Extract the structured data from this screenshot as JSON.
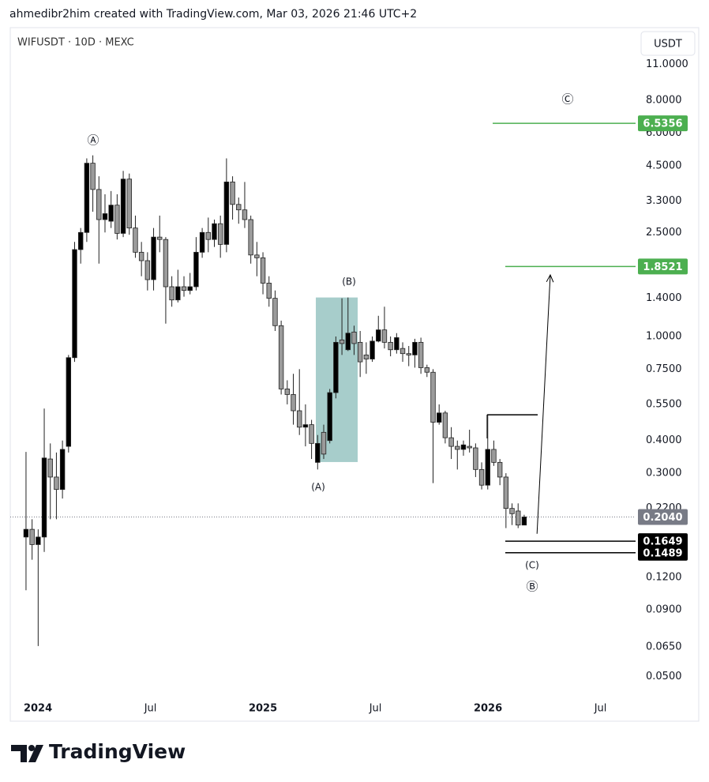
{
  "header": {
    "attribution": "ahmedibr2him created with TradingView.com, Mar 03, 2026 21:46 UTC+2"
  },
  "chart_data": {
    "type": "candlestick",
    "title": "WIFUSDT · 10D · MEXC",
    "currency": "USDT",
    "log_scale": true,
    "up_color": "#000000",
    "down_color": "#9b9b9b",
    "x": [
      2023.947,
      2023.974,
      2024.001,
      2024.028,
      2024.055,
      2024.082,
      2024.109,
      2024.136,
      2024.163,
      2024.19,
      2024.217,
      2024.244,
      2024.271,
      2024.298,
      2024.325,
      2024.352,
      2024.379,
      2024.406,
      2024.433,
      2024.46,
      2024.487,
      2024.514,
      2024.541,
      2024.568,
      2024.595,
      2024.622,
      2024.649,
      2024.676,
      2024.703,
      2024.73,
      2024.757,
      2024.784,
      2024.811,
      2024.838,
      2024.865,
      2024.892,
      2024.919,
      2024.946,
      2024.973,
      2025.0,
      2025.027,
      2025.054,
      2025.081,
      2025.108,
      2025.135,
      2025.162,
      2025.189,
      2025.216,
      2025.243,
      2025.27,
      2025.297,
      2025.324,
      2025.351,
      2025.378,
      2025.405,
      2025.432,
      2025.459,
      2025.486,
      2025.513,
      2025.54,
      2025.567,
      2025.594,
      2025.621,
      2025.648,
      2025.675,
      2025.702,
      2025.729,
      2025.756,
      2025.783,
      2025.81,
      2025.837,
      2025.864,
      2025.891,
      2025.918,
      2025.945,
      2025.972,
      2025.999,
      2026.026,
      2026.053,
      2026.08,
      2026.107,
      2026.134,
      2026.161
    ],
    "open": [
      0.171,
      0.183,
      0.16,
      0.171,
      0.34,
      0.29,
      0.26,
      0.38,
      0.83,
      2.15,
      2.5,
      4.6,
      3.65,
      2.8,
      2.76,
      3.18,
      2.48,
      4.0,
      2.6,
      2.1,
      1.95,
      1.65,
      2.4,
      2.35,
      1.55,
      1.38,
      1.55,
      1.5,
      1.55,
      2.1,
      2.5,
      2.35,
      2.7,
      2.25,
      3.9,
      3.2,
      3.05,
      2.8,
      2.05,
      2.0,
      1.6,
      1.4,
      1.1,
      0.63,
      0.6,
      0.52,
      0.45,
      0.46,
      0.33,
      0.43,
      0.4,
      0.61,
      0.97,
      0.89,
      1.04,
      0.95,
      0.85,
      0.82,
      0.96,
      1.06,
      0.95,
      0.89,
      0.9,
      0.86,
      0.85,
      0.95,
      0.76,
      0.73,
      0.47,
      0.51,
      0.41,
      0.38,
      0.37,
      0.38,
      0.375,
      0.31,
      0.27,
      0.37,
      0.33,
      0.29,
      0.22,
      0.215,
      0.19
    ],
    "high": [
      0.362,
      0.2,
      0.183,
      0.53,
      0.39,
      0.36,
      0.4,
      0.85,
      2.3,
      2.6,
      4.8,
      4.93,
      4.1,
      3.5,
      3.6,
      3.5,
      4.3,
      4.2,
      2.9,
      2.3,
      2.1,
      2.6,
      2.9,
      2.4,
      1.7,
      1.8,
      1.7,
      1.75,
      2.4,
      2.6,
      2.85,
      2.8,
      2.9,
      4.8,
      4.1,
      3.4,
      3.9,
      2.9,
      2.3,
      2.1,
      1.7,
      1.5,
      1.15,
      0.68,
      0.72,
      0.75,
      0.55,
      0.48,
      0.42,
      0.46,
      0.63,
      1.0,
      1.4,
      1.41,
      1.1,
      1.05,
      0.95,
      1.0,
      1.2,
      1.3,
      1.0,
      1.03,
      0.95,
      0.92,
      0.98,
      0.99,
      0.78,
      0.75,
      0.55,
      0.52,
      0.45,
      0.4,
      0.4,
      0.44,
      0.39,
      0.33,
      0.5,
      0.4,
      0.34,
      0.3,
      0.23,
      0.23,
      0.208
    ],
    "low": [
      0.107,
      0.14,
      0.0655,
      0.15,
      0.2,
      0.2,
      0.24,
      0.36,
      0.8,
      1.9,
      2.3,
      3.0,
      1.9,
      2.5,
      2.6,
      2.35,
      2.4,
      2.45,
      2.0,
      1.7,
      1.5,
      1.5,
      2.1,
      1.12,
      1.3,
      1.35,
      1.42,
      1.45,
      1.5,
      2.0,
      2.1,
      2.2,
      2.0,
      2.1,
      2.8,
      2.7,
      2.6,
      1.9,
      1.7,
      1.45,
      1.3,
      1.05,
      0.6,
      0.55,
      0.46,
      0.42,
      0.38,
      0.34,
      0.31,
      0.34,
      0.39,
      0.58,
      0.85,
      0.88,
      0.85,
      0.7,
      0.72,
      0.8,
      0.95,
      0.9,
      0.84,
      0.86,
      0.8,
      0.77,
      0.76,
      0.72,
      0.7,
      0.275,
      0.46,
      0.39,
      0.34,
      0.31,
      0.35,
      0.36,
      0.29,
      0.26,
      0.26,
      0.32,
      0.27,
      0.185,
      0.19,
      0.185,
      0.19
    ],
    "close": [
      0.183,
      0.16,
      0.171,
      0.343,
      0.29,
      0.26,
      0.37,
      0.83,
      2.15,
      2.5,
      4.6,
      3.65,
      2.8,
      2.95,
      3.18,
      2.48,
      4.0,
      2.6,
      2.1,
      1.95,
      1.65,
      2.4,
      2.35,
      1.55,
      1.38,
      1.55,
      1.5,
      1.55,
      2.1,
      2.5,
      2.35,
      2.7,
      2.25,
      3.9,
      3.2,
      3.05,
      2.8,
      2.05,
      2.0,
      1.6,
      1.4,
      1.1,
      0.63,
      0.6,
      0.52,
      0.45,
      0.46,
      0.39,
      0.39,
      0.355,
      0.61,
      0.95,
      0.94,
      1.03,
      0.94,
      0.8,
      0.82,
      0.96,
      1.06,
      0.95,
      0.89,
      0.99,
      0.86,
      0.85,
      0.95,
      0.76,
      0.73,
      0.47,
      0.51,
      0.41,
      0.38,
      0.37,
      0.385,
      0.375,
      0.31,
      0.27,
      0.37,
      0.33,
      0.29,
      0.22,
      0.21,
      0.19,
      0.204
    ],
    "xlim": [
      2023.877,
      2026.656
    ],
    "xticks": [
      {
        "value": 2024,
        "label": "2024"
      },
      {
        "value": 2024.5,
        "label": "Jul"
      },
      {
        "value": 2025,
        "label": "2025"
      },
      {
        "value": 2025.5,
        "label": "Jul"
      },
      {
        "value": 2026,
        "label": "2026"
      },
      {
        "value": 2026.5,
        "label": "Jul"
      }
    ],
    "ylim": [
      0.0425,
      15.18
    ],
    "yticks": [
      {
        "value": 11,
        "label": "11.0000"
      },
      {
        "value": 8,
        "label": "8.0000"
      },
      {
        "value": 6,
        "label": "6.0000"
      },
      {
        "value": 4.5,
        "label": "4.5000"
      },
      {
        "value": 3.3,
        "label": "3.3000"
      },
      {
        "value": 2.5,
        "label": "2.5000"
      },
      {
        "value": 1.4,
        "label": "1.4000"
      },
      {
        "value": 1,
        "label": "1.0000"
      },
      {
        "value": 0.75,
        "label": "0.7500"
      },
      {
        "value": 0.55,
        "label": "0.5500"
      },
      {
        "value": 0.4,
        "label": "0.4000"
      },
      {
        "value": 0.3,
        "label": "0.3000"
      },
      {
        "value": 0.22,
        "label": "0.2200"
      },
      {
        "value": 0.12,
        "label": "0.1200"
      },
      {
        "value": 0.09,
        "label": "0.0900"
      },
      {
        "value": 0.065,
        "label": "0.0650"
      },
      {
        "value": 0.05,
        "label": "0.0500"
      }
    ],
    "current_price": {
      "value": 0.204,
      "label": "0.2040",
      "color": "#787b86"
    },
    "levels": [
      {
        "value": 6.5356,
        "label": "6.5356",
        "color": "#4caf50",
        "start": 2026.021
      },
      {
        "value": 1.8521,
        "label": "1.8521",
        "color": "#4caf50",
        "start": 2026.077
      },
      {
        "value": 0.1649,
        "label": "0.1649",
        "color": "#000000",
        "start": 2026.077
      },
      {
        "value": 0.1489,
        "label": "0.1489",
        "color": "#000000",
        "start": 2026.077
      }
    ],
    "segment": {
      "x": [
        2025.996,
        2026.221
      ],
      "y": [
        0.502,
        0.502
      ]
    },
    "arrow": {
      "x": [
        2026.218,
        2026.277
      ],
      "y": [
        0.176,
        1.72
      ]
    },
    "box": {
      "x": [
        2025.235,
        2025.421
      ],
      "y": [
        0.331,
        1.41
      ],
      "color": "#a7cdcb"
    },
    "annotations": [
      "Ⓐ",
      "(B)",
      "(A)",
      "Ⓒ",
      "(C)",
      "Ⓑ"
    ]
  },
  "footer": {
    "brand": "TradingView"
  }
}
